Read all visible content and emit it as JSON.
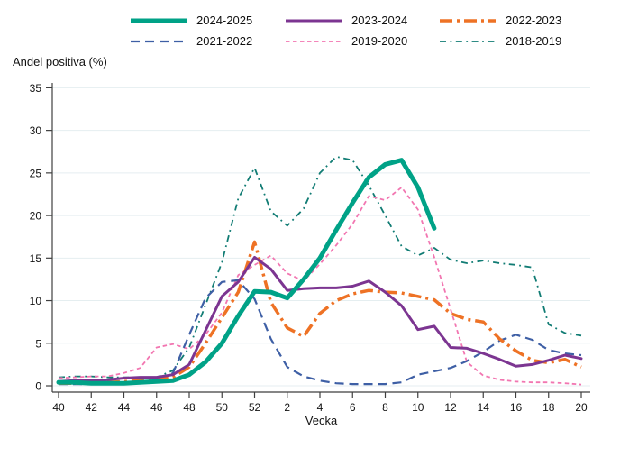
{
  "chart_data": {
    "type": "line",
    "title": "",
    "ylabel": "Andel positiva (%)",
    "xlabel": "Vecka",
    "ylim": [
      0,
      35
    ],
    "yticks": [
      0,
      5,
      10,
      15,
      20,
      25,
      30,
      35
    ],
    "grid": "horizontal",
    "legend_position": "top",
    "weeks": [
      "40",
      "41",
      "42",
      "43",
      "44",
      "45",
      "46",
      "47",
      "48",
      "49",
      "50",
      "51",
      "52",
      "1",
      "2",
      "3",
      "4",
      "5",
      "6",
      "7",
      "8",
      "9",
      "10",
      "11",
      "12",
      "13",
      "14",
      "15",
      "16",
      "17",
      "18",
      "19",
      "20"
    ],
    "x_tick_indices": [
      0,
      2,
      4,
      6,
      8,
      10,
      12,
      14,
      16,
      18,
      20,
      22,
      24,
      26,
      28,
      30,
      32
    ],
    "x_tick_labels": [
      "40",
      "42",
      "44",
      "46",
      "48",
      "50",
      "52",
      "2",
      "4",
      "6",
      "8",
      "10",
      "12",
      "14",
      "16",
      "18",
      "20"
    ],
    "series": [
      {
        "name": "2024-2025",
        "color": "#00a287",
        "width": 5,
        "dash": "",
        "values": [
          0.4,
          0.4,
          0.3,
          0.3,
          0.3,
          0.4,
          0.5,
          0.6,
          1.3,
          2.8,
          5.0,
          8.2,
          11.1,
          11.0,
          10.3,
          12.5,
          15.0,
          18.3,
          21.5,
          24.5,
          26.0,
          26.5,
          23.3,
          18.5
        ]
      },
      {
        "name": "2023-2024",
        "color": "#7c3591",
        "width": 3,
        "dash": "",
        "values": [
          0.5,
          0.6,
          0.6,
          0.7,
          0.9,
          1.0,
          1.0,
          1.3,
          2.5,
          6.5,
          10.5,
          12.2,
          15.1,
          13.7,
          11.2,
          11.4,
          11.5,
          11.5,
          11.7,
          12.3,
          11.0,
          9.4,
          6.6,
          7.0,
          4.5,
          4.4,
          3.8,
          3.1,
          2.3,
          2.5,
          3.0,
          3.6,
          3.2
        ]
      },
      {
        "name": "2022-2023",
        "color": "#ee7225",
        "width": 3.5,
        "dash": "14 5 3 5",
        "values": [
          0.3,
          0.3,
          0.4,
          0.4,
          0.5,
          0.6,
          0.7,
          1.0,
          2.2,
          5.0,
          8.0,
          11.0,
          16.9,
          9.8,
          6.8,
          5.8,
          8.5,
          10.0,
          10.8,
          11.2,
          11.0,
          10.9,
          10.5,
          10.1,
          8.5,
          7.8,
          7.5,
          5.5,
          4.1,
          3.0,
          2.7,
          3.1,
          2.2
        ]
      },
      {
        "name": "2021-2022",
        "color": "#3e5fa5",
        "width": 2.2,
        "dash": "10 6",
        "values": [
          0.2,
          0.2,
          0.2,
          0.3,
          0.3,
          0.3,
          0.4,
          1.5,
          6.0,
          10.3,
          12.2,
          12.4,
          10.2,
          5.5,
          2.2,
          1.1,
          0.6,
          0.3,
          0.2,
          0.2,
          0.2,
          0.4,
          1.3,
          1.7,
          2.1,
          2.9,
          4.0,
          5.3,
          6.0,
          5.4,
          4.2,
          3.8,
          3.6
        ]
      },
      {
        "name": "2019-2020",
        "color": "#f276b1",
        "width": 1.8,
        "dash": "4.5 3.5",
        "values": [
          0.9,
          1.0,
          1.1,
          1.1,
          1.5,
          2.1,
          4.5,
          4.9,
          4.3,
          6.0,
          8.6,
          13.0,
          14.2,
          15.3,
          13.2,
          12.3,
          14.3,
          16.5,
          19.0,
          22.3,
          21.8,
          23.3,
          20.7,
          15.1,
          9.0,
          2.8,
          1.2,
          0.7,
          0.5,
          0.4,
          0.4,
          0.3,
          0.15
        ]
      },
      {
        "name": "2018-2019",
        "color": "#117c74",
        "width": 1.8,
        "dash": "7 4.5 1.8 4.5",
        "values": [
          1.0,
          1.1,
          1.1,
          1.0,
          1.0,
          1.0,
          1.0,
          1.8,
          4.5,
          9.5,
          14.5,
          22.0,
          25.6,
          20.5,
          18.8,
          20.8,
          25.0,
          26.9,
          26.5,
          23.5,
          20.0,
          16.4,
          15.3,
          16.2,
          14.8,
          14.4,
          14.7,
          14.4,
          14.2,
          13.9,
          7.2,
          6.2,
          5.9
        ]
      }
    ]
  }
}
